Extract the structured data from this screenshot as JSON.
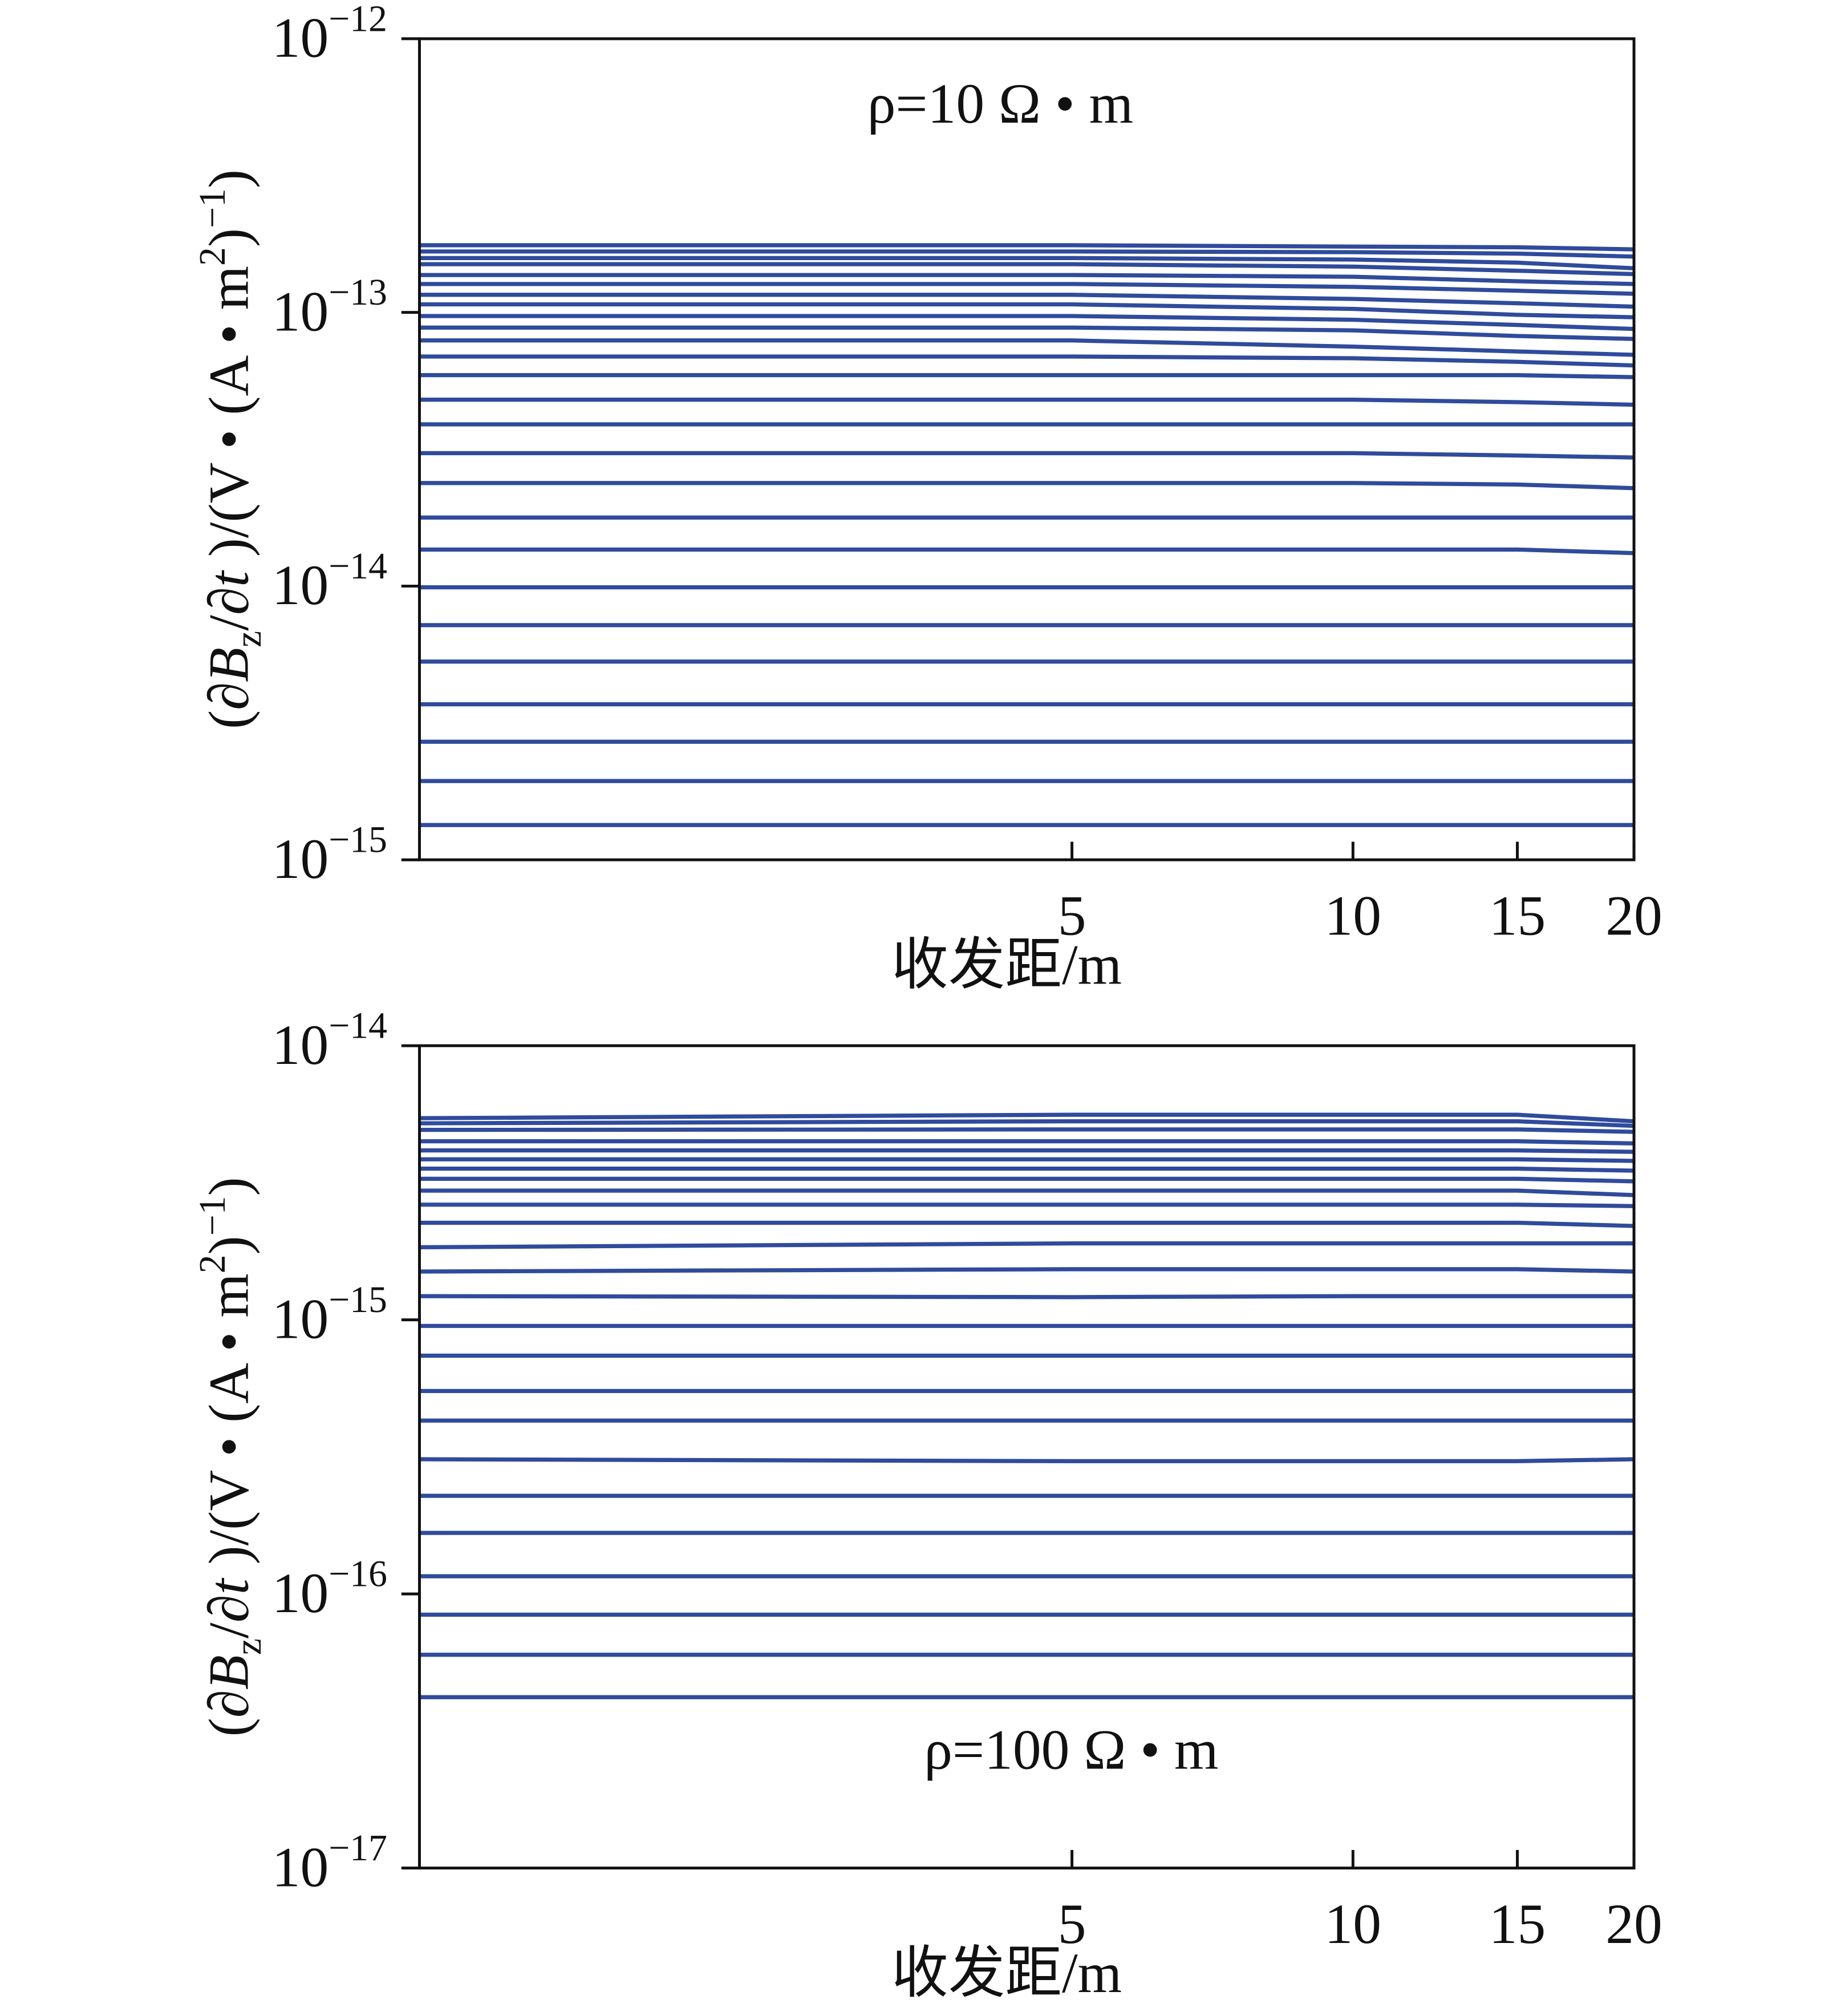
{
  "chart_data": [
    {
      "type": "line",
      "xscale": "log",
      "yscale": "log",
      "color": "#2f4b9c",
      "annotation": "ρ=10 Ω • m",
      "xlabel": "收发距/m",
      "ylabel": [
        "(∂",
        "B",
        "z",
        "/∂",
        "t",
        " )/(V • (A • m",
        "2",
        ")",
        "−1",
        ")"
      ],
      "x": [
        1,
        5,
        10,
        15,
        20
      ],
      "xlim": [
        1,
        20
      ],
      "xticks": [
        5,
        10,
        15,
        20
      ],
      "ylim": [
        1e-15,
        1e-12
      ],
      "yticks": [
        {
          "value": 1e-15,
          "label": "10−15"
        },
        {
          "value": 1e-14,
          "label": "10−14"
        },
        {
          "value": 1e-13,
          "label": "10−13"
        },
        {
          "value": 1e-12,
          "label": "10−12"
        }
      ],
      "series": [
        {
          "values": [
            1.76e-13,
            1.76e-13,
            1.74e-13,
            1.73e-13,
            1.7e-13
          ]
        },
        {
          "values": [
            1.67e-13,
            1.67e-13,
            1.66e-13,
            1.64e-13,
            1.6e-13
          ]
        },
        {
          "values": [
            1.58e-13,
            1.58e-13,
            1.56e-13,
            1.52e-13,
            1.45e-13
          ]
        },
        {
          "values": [
            1.5e-13,
            1.5e-13,
            1.47e-13,
            1.42e-13,
            1.38e-13
          ]
        },
        {
          "values": [
            1.37e-13,
            1.37e-13,
            1.35e-13,
            1.3e-13,
            1.27e-13
          ]
        },
        {
          "values": [
            1.27e-13,
            1.27e-13,
            1.24e-13,
            1.2e-13,
            1.17e-13
          ]
        },
        {
          "values": [
            1.16e-13,
            1.16e-13,
            1.12e-13,
            1.08e-13,
            1.05e-13
          ]
        },
        {
          "values": [
            1.07e-13,
            1.07e-13,
            1.03e-13,
            9.8e-14,
            9.6e-14
          ]
        },
        {
          "values": [
            9.7e-14,
            9.7e-14,
            9.4e-14,
            9e-14,
            8.7e-14
          ]
        },
        {
          "values": [
            8.8e-14,
            8.8e-14,
            8.6e-14,
            8.2e-14,
            8e-14
          ]
        },
        {
          "values": [
            7.9e-14,
            7.9e-14,
            7.5e-14,
            7.2e-14,
            7e-14
          ]
        },
        {
          "values": [
            6.9e-14,
            6.9e-14,
            6.8e-14,
            6.6e-14,
            6.4e-14
          ]
        },
        {
          "values": [
            5.9e-14,
            5.9e-14,
            5.9e-14,
            5.9e-14,
            5.8e-14
          ]
        },
        {
          "values": [
            4.8e-14,
            4.8e-14,
            4.8e-14,
            4.7e-14,
            4.6e-14
          ]
        },
        {
          "values": [
            3.9e-14,
            3.9e-14,
            3.9e-14,
            3.9e-14,
            3.9e-14
          ]
        },
        {
          "values": [
            3.06e-14,
            3.06e-14,
            3.06e-14,
            3e-14,
            2.95e-14
          ]
        },
        {
          "values": [
            2.38e-14,
            2.38e-14,
            2.38e-14,
            2.35e-14,
            2.28e-14
          ]
        },
        {
          "values": [
            1.78e-14,
            1.78e-14,
            1.78e-14,
            1.78e-14,
            1.78e-14
          ]
        },
        {
          "values": [
            1.36e-14,
            1.36e-14,
            1.36e-14,
            1.36e-14,
            1.32e-14
          ]
        },
        {
          "values": [
            9.9e-15,
            9.9e-15,
            9.9e-15,
            9.9e-15,
            9.9e-15
          ]
        },
        {
          "values": [
            7.2e-15,
            7.2e-15,
            7.2e-15,
            7.2e-15,
            7.2e-15
          ]
        },
        {
          "values": [
            5.3e-15,
            5.3e-15,
            5.3e-15,
            5.3e-15,
            5.3e-15
          ]
        },
        {
          "values": [
            3.7e-15,
            3.7e-15,
            3.7e-15,
            3.7e-15,
            3.7e-15
          ]
        },
        {
          "values": [
            2.7e-15,
            2.7e-15,
            2.7e-15,
            2.7e-15,
            2.7e-15
          ]
        },
        {
          "values": [
            1.94e-15,
            1.94e-15,
            1.94e-15,
            1.94e-15,
            1.94e-15
          ]
        },
        {
          "values": [
            1.34e-15,
            1.34e-15,
            1.34e-15,
            1.34e-15,
            1.34e-15
          ]
        }
      ]
    },
    {
      "type": "line",
      "xscale": "log",
      "yscale": "log",
      "color": "#2f4b9c",
      "annotation": "ρ=100 Ω • m",
      "xlabel": "收发距/m",
      "ylabel": [
        "(∂",
        "B",
        "z",
        "/∂",
        "t",
        " )/(V • (A • m",
        "2",
        ")",
        "−1",
        ")"
      ],
      "x": [
        1,
        5,
        10,
        15,
        20
      ],
      "xlim": [
        1,
        20
      ],
      "xticks": [
        5,
        10,
        15,
        20
      ],
      "ylim": [
        1e-17,
        1e-14
      ],
      "yticks": [
        {
          "value": 1e-17,
          "label": "10−17"
        },
        {
          "value": 1e-16,
          "label": "10−16"
        },
        {
          "value": 1e-15,
          "label": "10−15"
        },
        {
          "value": 1e-14,
          "label": "10−14"
        }
      ],
      "series": [
        {
          "values": [
            5.44e-15,
            5.6e-15,
            5.6e-15,
            5.6e-15,
            5.3e-15
          ]
        },
        {
          "values": [
            5.21e-15,
            5.3e-15,
            5.3e-15,
            5.3e-15,
            5.1e-15
          ]
        },
        {
          "values": [
            4.93e-15,
            4.95e-15,
            4.95e-15,
            4.95e-15,
            4.85e-15
          ]
        },
        {
          "values": [
            4.48e-15,
            4.48e-15,
            4.48e-15,
            4.48e-15,
            4.4e-15
          ]
        },
        {
          "values": [
            4.15e-15,
            4.15e-15,
            4.15e-15,
            4.15e-15,
            4.1e-15
          ]
        },
        {
          "values": [
            3.85e-15,
            3.85e-15,
            3.85e-15,
            3.85e-15,
            3.8e-15
          ]
        },
        {
          "values": [
            3.56e-15,
            3.56e-15,
            3.56e-15,
            3.56e-15,
            3.5e-15
          ]
        },
        {
          "values": [
            3.27e-15,
            3.27e-15,
            3.27e-15,
            3.27e-15,
            3.2e-15
          ]
        },
        {
          "values": [
            2.96e-15,
            2.96e-15,
            2.96e-15,
            2.96e-15,
            2.85e-15
          ]
        },
        {
          "values": [
            2.63e-15,
            2.63e-15,
            2.63e-15,
            2.63e-15,
            2.6e-15
          ]
        },
        {
          "values": [
            2.26e-15,
            2.26e-15,
            2.26e-15,
            2.26e-15,
            2.2e-15
          ]
        },
        {
          "values": [
            1.84e-15,
            1.9e-15,
            1.9e-15,
            1.9e-15,
            1.9e-15
          ]
        },
        {
          "values": [
            1.5e-15,
            1.53e-15,
            1.53e-15,
            1.53e-15,
            1.5e-15
          ]
        },
        {
          "values": [
            1.22e-15,
            1.21e-15,
            1.22e-15,
            1.22e-15,
            1.22e-15
          ]
        },
        {
          "values": [
            9.5e-16,
            9.5e-16,
            9.5e-16,
            9.5e-16,
            9.5e-16
          ]
        },
        {
          "values": [
            7.4e-16,
            7.4e-16,
            7.4e-16,
            7.4e-16,
            7.4e-16
          ]
        },
        {
          "values": [
            5.5e-16,
            5.5e-16,
            5.5e-16,
            5.5e-16,
            5.5e-16
          ]
        },
        {
          "values": [
            4.29e-16,
            4.29e-16,
            4.29e-16,
            4.29e-16,
            4.29e-16
          ]
        },
        {
          "values": [
            3.1e-16,
            3.05e-16,
            3.05e-16,
            3.05e-16,
            3.1e-16
          ]
        },
        {
          "values": [
            2.28e-16,
            2.28e-16,
            2.28e-16,
            2.28e-16,
            2.28e-16
          ]
        },
        {
          "values": [
            1.67e-16,
            1.67e-16,
            1.67e-16,
            1.67e-16,
            1.67e-16
          ]
        },
        {
          "values": [
            1.16e-16,
            1.16e-16,
            1.16e-16,
            1.16e-16,
            1.16e-16
          ]
        },
        {
          "values": [
            8.4e-17,
            8.4e-17,
            8.4e-17,
            8.4e-17,
            8.4e-17
          ]
        },
        {
          "values": [
            6e-17,
            6e-17,
            6e-17,
            6e-17,
            6e-17
          ]
        },
        {
          "values": [
            4.2e-17,
            4.2e-17,
            4.2e-17,
            4.2e-17,
            4.2e-17
          ]
        }
      ]
    }
  ]
}
